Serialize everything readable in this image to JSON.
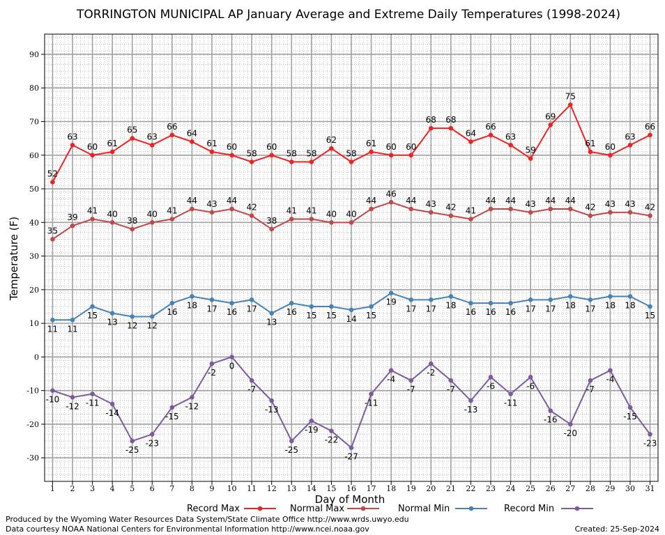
{
  "chart_data": {
    "type": "line",
    "title": "TORRINGTON MUNICIPAL AP January Average and Extreme Daily Temperatures (1998-2024)",
    "xlabel": "Day of Month",
    "ylabel": "Temperature (F)",
    "ylim": [
      -37,
      96
    ],
    "xlim": [
      0.6,
      31.4
    ],
    "yticks": [
      -30,
      -20,
      -10,
      0,
      10,
      20,
      30,
      40,
      50,
      60,
      70,
      80,
      90
    ],
    "x": [
      1,
      2,
      3,
      4,
      5,
      6,
      7,
      8,
      9,
      10,
      11,
      12,
      13,
      14,
      15,
      16,
      17,
      18,
      19,
      20,
      21,
      22,
      23,
      24,
      25,
      26,
      27,
      28,
      29,
      30,
      31
    ],
    "grid": true,
    "legend_placement": "bottom",
    "series": [
      {
        "name": "Record Max",
        "color": "#ee2222",
        "values": [
          52,
          63,
          60,
          61,
          65,
          63,
          66,
          64,
          61,
          60,
          58,
          60,
          58,
          58,
          62,
          58,
          61,
          60,
          60,
          68,
          68,
          64,
          66,
          63,
          59,
          69,
          75,
          61,
          60,
          63,
          66
        ]
      },
      {
        "name": "Normal Max",
        "color": "#c04848",
        "values": [
          35,
          39,
          41,
          40,
          38,
          40,
          41,
          44,
          43,
          44,
          42,
          38,
          41,
          41,
          40,
          40,
          44,
          46,
          44,
          43,
          42,
          41,
          44,
          44,
          43,
          44,
          44,
          42,
          43,
          43,
          42
        ]
      },
      {
        "name": "Normal Min",
        "color": "#4682b4",
        "values": [
          11,
          11,
          15,
          13,
          12,
          12,
          16,
          18,
          17,
          16,
          17,
          13,
          16,
          15,
          15,
          14,
          15,
          19,
          17,
          17,
          18,
          16,
          16,
          16,
          17,
          17,
          18,
          17,
          18,
          18,
          15
        ]
      },
      {
        "name": "Record Min",
        "color": "#7b5a9e",
        "values": [
          -10,
          -12,
          -11,
          -14,
          -25,
          -23,
          -15,
          -12,
          -2,
          0,
          -7,
          -13,
          -25,
          -19,
          -22,
          -27,
          -11,
          -4,
          -7,
          -2,
          -7,
          -13,
          -6,
          -11,
          -6,
          -16,
          -20,
          -7,
          -4,
          -15,
          -23
        ]
      }
    ]
  },
  "footer": {
    "produced_by": "Produced by the Wyoming Water Resources Data System/State Climate Office http://www.wrds.uwyo.edu",
    "courtesy": "Data courtesy NOAA National Centers for Environmental Information http://www.ncei.noaa.gov",
    "created": "Created: 25-Sep-2024"
  }
}
